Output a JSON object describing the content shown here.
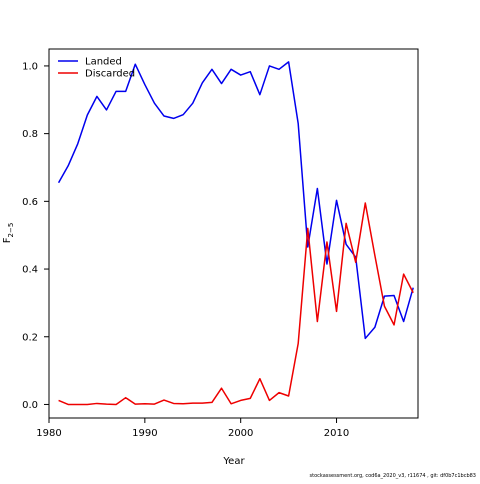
{
  "chart_data": {
    "type": "line",
    "xlabel": "Year",
    "ylabel": "F",
    "ylabel_subscript": "2−5",
    "xlim": [
      1980,
      2018.5
    ],
    "ylim": [
      -0.04,
      1.05
    ],
    "xticks": [
      1980,
      1990,
      2000,
      2010
    ],
    "xtick_labels": [
      "1980",
      "1990",
      "2000",
      "2010"
    ],
    "yticks": [
      0.0,
      0.2,
      0.4,
      0.6,
      0.8,
      1.0
    ],
    "ytick_labels": [
      "0.0",
      "0.2",
      "0.4",
      "0.6",
      "0.8",
      "1.0"
    ],
    "grid": false,
    "legend_position": "top-left",
    "x": [
      1981,
      1982,
      1983,
      1984,
      1985,
      1986,
      1987,
      1988,
      1989,
      1990,
      1991,
      1992,
      1993,
      1994,
      1995,
      1996,
      1997,
      1998,
      1999,
      2000,
      2001,
      2002,
      2003,
      2004,
      2005,
      2006,
      2007,
      2008,
      2009,
      2010,
      2011,
      2012,
      2013,
      2014,
      2015,
      2016,
      2017,
      2018
    ],
    "series": [
      {
        "name": "Landed",
        "color": "#0000ee",
        "values": [
          0.655,
          0.705,
          0.77,
          0.855,
          0.91,
          0.87,
          0.925,
          0.925,
          1.005,
          0.945,
          0.89,
          0.852,
          0.845,
          0.856,
          0.89,
          0.95,
          0.99,
          0.948,
          0.99,
          0.973,
          0.983,
          0.915,
          1.0,
          0.99,
          1.012,
          0.83,
          0.465,
          0.638,
          0.415,
          0.603,
          0.473,
          0.435,
          0.195,
          0.228,
          0.32,
          0.322,
          0.245,
          0.345
        ]
      },
      {
        "name": "Discarded",
        "color": "#ee0000",
        "values": [
          0.012,
          0.0,
          0.0,
          0.0,
          0.003,
          0.001,
          0.0,
          0.02,
          0.001,
          0.002,
          0.001,
          0.013,
          0.003,
          0.002,
          0.004,
          0.004,
          0.006,
          0.048,
          0.002,
          0.012,
          0.018,
          0.076,
          0.012,
          0.035,
          0.025,
          0.18,
          0.52,
          0.245,
          0.48,
          0.275,
          0.535,
          0.42,
          0.595,
          0.44,
          0.29,
          0.235,
          0.385,
          0.33
        ]
      }
    ]
  },
  "footer_text": "stockassessment.org, cod6a_2020_v3, r11674 , git: df0b7c1bcb83"
}
